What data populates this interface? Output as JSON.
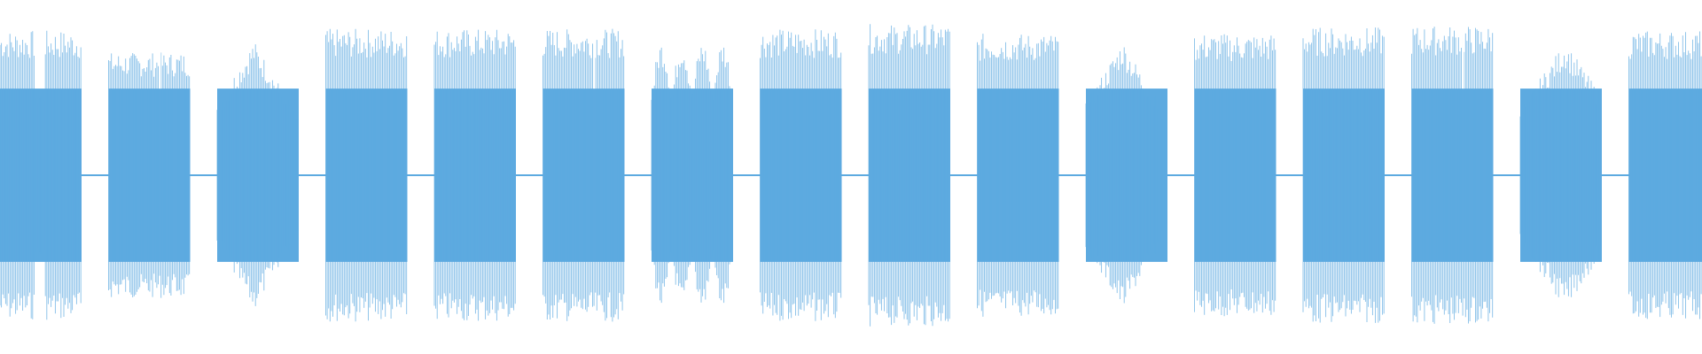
{
  "waveform": {
    "color": "#5daae0",
    "background": "#ffffff",
    "segment_count": 16,
    "segments": [
      {
        "shape": "split-top",
        "peak": 0.92
      },
      {
        "shape": "flat-with-gap",
        "peak": 0.78
      },
      {
        "shape": "diamond",
        "peak": 0.86
      },
      {
        "shape": "flat",
        "peak": 0.93
      },
      {
        "shape": "flat",
        "peak": 0.93
      },
      {
        "shape": "flat-with-gap",
        "peak": 0.93
      },
      {
        "shape": "scalloped",
        "peak": 0.86
      },
      {
        "shape": "flat",
        "peak": 0.93
      },
      {
        "shape": "flat",
        "peak": 0.96
      },
      {
        "shape": "flat",
        "peak": 0.9
      },
      {
        "shape": "diamond",
        "peak": 0.86
      },
      {
        "shape": "flat",
        "peak": 0.9
      },
      {
        "shape": "flat",
        "peak": 0.94
      },
      {
        "shape": "flat-with-gap",
        "peak": 0.95
      },
      {
        "shape": "diamond-right",
        "peak": 0.85
      },
      {
        "shape": "flat",
        "peak": 0.92
      }
    ]
  }
}
